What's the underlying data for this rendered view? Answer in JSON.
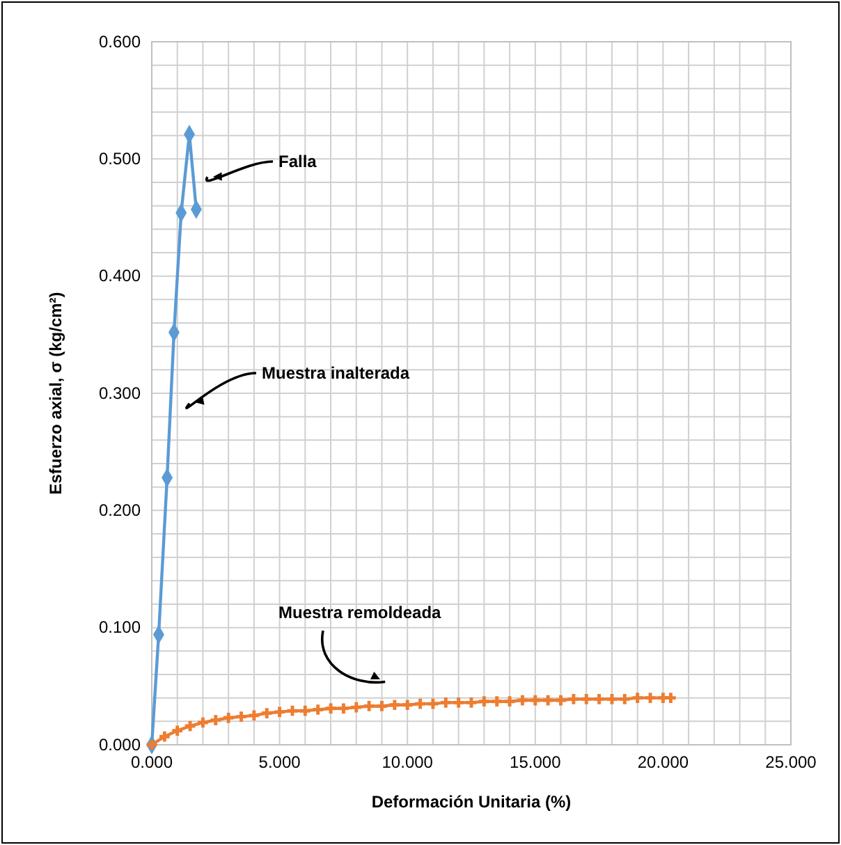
{
  "chart_data": {
    "type": "line",
    "xlabel": "Deformación Unitaria (%)",
    "ylabel": "Esfuerzo axial, σ (kg/cm²)",
    "xlim": [
      0,
      25
    ],
    "xticks": [
      {
        "value": 0,
        "label": "0.000"
      },
      {
        "value": 5,
        "label": "5.000"
      },
      {
        "value": 10,
        "label": "10.000"
      },
      {
        "value": 15,
        "label": "15.000"
      },
      {
        "value": 20,
        "label": "20.000"
      },
      {
        "value": 25,
        "label": "25.000"
      }
    ],
    "ylim": [
      0,
      0.6
    ],
    "yticks": [
      {
        "value": 0,
        "label": "0.000"
      },
      {
        "value": 0.1,
        "label": "0.100"
      },
      {
        "value": 0.2,
        "label": "0.200"
      },
      {
        "value": 0.3,
        "label": "0.300"
      },
      {
        "value": 0.4,
        "label": "0.400"
      },
      {
        "value": 0.5,
        "label": "0.500"
      },
      {
        "value": 0.6,
        "label": "0.600"
      }
    ],
    "grid": true,
    "series": [
      {
        "color": "#5b9bd5",
        "marker": "diamond",
        "x": [
          0,
          0.27,
          0.6,
          0.87,
          1.15,
          1.47,
          1.74
        ],
        "values": [
          0,
          0.094,
          0.228,
          0.352,
          0.454,
          0.521,
          0.457
        ]
      },
      {
        "color": "#ed7d31",
        "marker": "cross",
        "x": [
          0,
          0.5,
          1,
          1.5,
          2,
          2.5,
          3,
          3.5,
          4,
          4.5,
          5,
          5.5,
          6,
          6.5,
          7,
          7.5,
          8,
          8.5,
          9,
          9.5,
          10,
          10.5,
          11,
          11.5,
          12,
          12.5,
          13,
          13.5,
          14,
          14.5,
          15,
          15.5,
          16,
          16.5,
          17,
          17.5,
          18,
          18.5,
          19,
          19.5,
          20,
          20.3
        ],
        "values": [
          0,
          0.007,
          0.012,
          0.016,
          0.019,
          0.021,
          0.023,
          0.024,
          0.025,
          0.027,
          0.028,
          0.029,
          0.029,
          0.03,
          0.031,
          0.031,
          0.032,
          0.033,
          0.033,
          0.034,
          0.034,
          0.035,
          0.035,
          0.036,
          0.036,
          0.036,
          0.037,
          0.037,
          0.037,
          0.038,
          0.038,
          0.038,
          0.038,
          0.039,
          0.039,
          0.039,
          0.039,
          0.039,
          0.04,
          0.04,
          0.04,
          0.04
        ]
      }
    ],
    "annotations": [
      "Falla",
      "Muestra inalterada",
      "Muestra remoldeada"
    ]
  }
}
